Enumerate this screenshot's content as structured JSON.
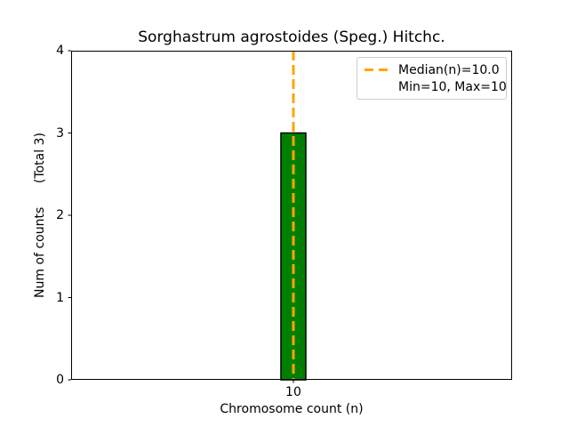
{
  "chart_data": {
    "type": "bar",
    "title": "Sorghastrum agrostoides (Speg.) Hitchc.",
    "xlabel": "Chromosome count (n)",
    "ylabel": "Num of counts      (Total 3)",
    "categories": [
      "10"
    ],
    "values": [
      3
    ],
    "ylim": [
      0,
      4
    ],
    "yticks": [
      "0",
      "1",
      "2",
      "3",
      "4"
    ],
    "xticks": [
      "10"
    ],
    "grid": false,
    "legend_position": "upper-right",
    "bar_color": "#008000",
    "bar_edge_color": "#000000",
    "axis_color": "#000000",
    "median_line": {
      "value": 10.0,
      "color": "#FFA500",
      "style": "dashed"
    },
    "legend": {
      "entries": [
        {
          "sample": "orange-dashed-line",
          "label": "Median(n)=10.0"
        },
        {
          "sample": "none",
          "label": "Min=10, Max=10"
        }
      ]
    }
  }
}
